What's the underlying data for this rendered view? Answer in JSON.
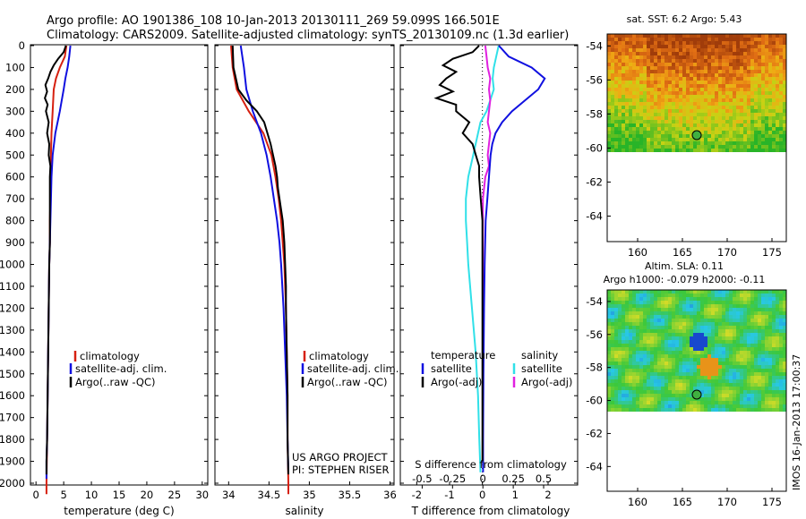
{
  "header": {
    "line1": "Argo profile: AO 1901386_108 10-Jan-2013 20130111_269 59.099S 166.501E",
    "line2": "Climatology: CARS2009. Satellite-adjusted climatology: synTS_20130109.nc (1.3d earlier)"
  },
  "depth_ticks": [
    "0",
    "100",
    "200",
    "300",
    "400",
    "500",
    "600",
    "700",
    "800",
    "900",
    "1000",
    "1100",
    "1200",
    "1300",
    "1400",
    "1500",
    "1600",
    "1700",
    "1800",
    "1900",
    "2000"
  ],
  "colors": {
    "climatology": "#d62010",
    "satellite": "#1010e0",
    "argo": "#000000",
    "satellite_s": "#30e0e8",
    "argo_s": "#e020e0"
  },
  "temp_panel": {
    "xlabel": "temperature (deg C)",
    "xticks": [
      "0",
      "5",
      "10",
      "15",
      "20",
      "25",
      "30"
    ],
    "legend": [
      "climatology",
      "satellite-adj. clim.",
      "Argo(..raw -QC)"
    ]
  },
  "sal_panel": {
    "xlabel": "salinity",
    "xticks": [
      "34",
      "34.5",
      "35",
      "35.5",
      "36"
    ],
    "legend": [
      "climatology",
      "satellite-adj. clim.",
      "Argo(..raw -QC)"
    ],
    "credit1": "US ARGO PROJECT",
    "credit2": "PI: STEPHEN RISER"
  },
  "diff_panel": {
    "xlabel": "T difference from climatology",
    "xticks": [
      "-2",
      "-1",
      "0",
      "1",
      "2"
    ],
    "top_label": "S difference from climatology",
    "top_ticks": [
      "-0.5",
      "-0.25",
      "0",
      "0.25",
      "0.5"
    ],
    "legend_t_title": "temperature",
    "legend_s_title": "salinity",
    "legend_t": [
      "satellite",
      "Argo(-adj)"
    ],
    "legend_s": [
      "satellite",
      "Argo(-adj)"
    ]
  },
  "map1": {
    "title": "sat. SST: 6.2 Argo: 5.43",
    "yticks": [
      "-54",
      "-56",
      "-58",
      "-60",
      "-62",
      "-64"
    ],
    "xticks": [
      "160",
      "165",
      "170",
      "175"
    ]
  },
  "map2": {
    "title1": "Altim. SLA: 0.11",
    "title2": "Argo h1000: -0.079 h2000: -0.11",
    "yticks": [
      "-54",
      "-56",
      "-58",
      "-60",
      "-62",
      "-64"
    ],
    "xticks": [
      "160",
      "165",
      "170",
      "175"
    ]
  },
  "stamp": "IMOS 16-Jan-2013 17:00:37",
  "chart_data": [
    {
      "type": "line",
      "title": "",
      "xlabel": "temperature (deg C)",
      "ylabel": "",
      "xlim": [
        -1,
        31
      ],
      "ylim": [
        2050,
        0
      ],
      "series": [
        {
          "name": "climatology",
          "depth": [
            0,
            50,
            100,
            150,
            200,
            300,
            400,
            500,
            600,
            700,
            800,
            900,
            1000,
            1200,
            1400,
            1600,
            1800,
            2000,
            2050
          ],
          "values": [
            5.5,
            5.2,
            4.3,
            3.6,
            3.2,
            3.0,
            2.8,
            2.7,
            2.6,
            2.6,
            2.5,
            2.5,
            2.4,
            2.3,
            2.2,
            2.1,
            2.0,
            1.9,
            1.9
          ]
        },
        {
          "name": "satellite-adj. clim.",
          "depth": [
            0,
            50,
            100,
            150,
            200,
            300,
            400,
            500,
            600,
            700,
            800,
            900,
            1000,
            1200,
            1400,
            1600,
            1800,
            1900,
            1980
          ],
          "values": [
            6.2,
            6.0,
            5.7,
            5.3,
            5.0,
            4.3,
            3.5,
            3.0,
            2.8,
            2.7,
            2.6,
            2.5,
            2.4,
            2.3,
            2.2,
            2.1,
            2.0,
            1.9,
            1.9
          ]
        },
        {
          "name": "Argo(..raw -QC)",
          "depth": [
            0,
            30,
            60,
            90,
            120,
            150,
            180,
            210,
            240,
            270,
            300,
            350,
            400,
            450,
            500,
            550,
            600,
            700,
            800,
            900,
            1000,
            1200,
            1400,
            1600,
            1800,
            1900,
            1960
          ],
          "values": [
            5.4,
            5.0,
            4.0,
            3.2,
            2.6,
            2.2,
            1.7,
            2.0,
            1.6,
            2.1,
            1.8,
            2.3,
            2.0,
            2.4,
            2.3,
            2.6,
            2.5,
            2.5,
            2.5,
            2.5,
            2.4,
            2.3,
            2.2,
            2.1,
            2.0,
            1.9,
            1.9
          ]
        }
      ]
    },
    {
      "type": "line",
      "title": "",
      "xlabel": "salinity",
      "ylabel": "",
      "xlim": [
        33.83,
        36.05
      ],
      "ylim": [
        2050,
        0
      ],
      "series": [
        {
          "name": "climatology",
          "depth": [
            0,
            100,
            200,
            300,
            400,
            500,
            600,
            700,
            800,
            900,
            1000,
            1200,
            1400,
            1600,
            1800,
            2000,
            2050
          ],
          "values": [
            34.03,
            34.05,
            34.1,
            34.25,
            34.43,
            34.53,
            34.58,
            34.62,
            34.65,
            34.67,
            34.69,
            34.71,
            34.72,
            34.73,
            34.73,
            34.74,
            34.74
          ]
        },
        {
          "name": "satellite-adj. clim.",
          "depth": [
            0,
            100,
            200,
            300,
            400,
            500,
            600,
            700,
            800,
            900,
            1000,
            1200,
            1400,
            1600,
            1800,
            1950
          ],
          "values": [
            34.15,
            34.19,
            34.22,
            34.3,
            34.4,
            34.47,
            34.52,
            34.56,
            34.6,
            34.63,
            34.65,
            34.68,
            34.7,
            34.72,
            34.73,
            34.74
          ]
        },
        {
          "name": "Argo(..raw -QC)",
          "depth": [
            0,
            100,
            200,
            250,
            300,
            350,
            400,
            450,
            500,
            550,
            600,
            650,
            700,
            800,
            900,
            1000,
            1100,
            1200,
            1400,
            1600,
            1800,
            1960
          ],
          "values": [
            34.05,
            34.06,
            34.12,
            34.22,
            34.35,
            34.44,
            34.48,
            34.52,
            34.55,
            34.58,
            34.6,
            34.61,
            34.63,
            34.67,
            34.69,
            34.7,
            34.71,
            34.71,
            34.72,
            34.73,
            34.73,
            34.74
          ]
        }
      ]
    },
    {
      "type": "line",
      "title": "",
      "xlabel": "T difference from climatology",
      "ylabel": "",
      "xlim": [
        -2.5,
        2.9
      ],
      "ylim": [
        2050,
        0
      ],
      "series": [
        {
          "name": "temperature satellite",
          "depth": [
            0,
            50,
            100,
            150,
            200,
            250,
            300,
            350,
            400,
            450,
            500,
            600,
            700,
            800,
            1000,
            1200,
            1500,
            1800,
            1950
          ],
          "values": [
            0.5,
            0.8,
            1.5,
            1.9,
            1.7,
            1.3,
            0.9,
            0.6,
            0.4,
            0.3,
            0.25,
            0.2,
            0.15,
            0.1,
            0.07,
            0.05,
            0.03,
            0.02,
            0.02
          ]
        },
        {
          "name": "temperature Argo(-adj)",
          "depth": [
            0,
            30,
            60,
            90,
            120,
            150,
            180,
            210,
            240,
            270,
            300,
            350,
            400,
            450,
            500,
            550,
            600,
            700,
            800,
            900,
            1000,
            1200,
            1400,
            1600,
            1800,
            1900
          ],
          "values": [
            -0.1,
            -0.3,
            -0.9,
            -1.2,
            -0.8,
            -1.1,
            -1.3,
            -0.9,
            -1.4,
            -0.8,
            -0.8,
            -0.4,
            -0.6,
            -0.3,
            -0.2,
            -0.1,
            -0.1,
            -0.05,
            0,
            0,
            0,
            0,
            0,
            0,
            0,
            0
          ]
        }
      ],
      "secondary_x": {
        "label": "S difference from climatology",
        "xlim": [
          -0.68,
          0.78
        ]
      },
      "secondary_series": [
        {
          "name": "salinity satellite",
          "depth": [
            0,
            50,
            100,
            150,
            200,
            250,
            300,
            350,
            400,
            500,
            600,
            700,
            800,
            900,
            1000,
            1200,
            1400,
            1600,
            1800,
            1950
          ],
          "values": [
            0.13,
            0.11,
            0.09,
            0.08,
            0.09,
            0.06,
            0.03,
            -0.02,
            -0.04,
            -0.08,
            -0.12,
            -0.14,
            -0.14,
            -0.13,
            -0.12,
            -0.09,
            -0.06,
            -0.04,
            -0.03,
            -0.02
          ]
        },
        {
          "name": "salinity Argo(-adj)",
          "depth": [
            0,
            50,
            100,
            150,
            200,
            250,
            300,
            350,
            400,
            450,
            500,
            550,
            600,
            650,
            700,
            800,
            900,
            1000,
            1200,
            1400,
            1600,
            1800,
            1900
          ],
          "values": [
            0.02,
            0.03,
            0.04,
            0.06,
            0.05,
            0.06,
            0.05,
            0.04,
            0.06,
            0.05,
            0.04,
            0.05,
            0.02,
            0.01,
            0.0,
            0.0,
            0.0,
            0.0,
            0.0,
            0.0,
            0.0,
            0.0,
            0.0
          ]
        }
      ]
    }
  ]
}
